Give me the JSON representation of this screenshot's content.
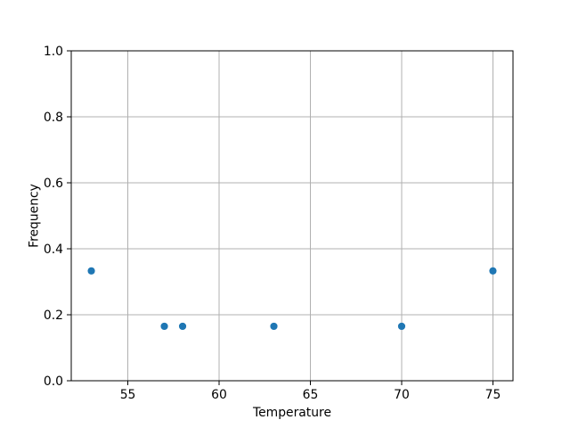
{
  "chart_data": {
    "type": "scatter",
    "title": "",
    "xlabel": "Temperature",
    "ylabel": "Frequency",
    "x": [
      53,
      57,
      58,
      63,
      70,
      75
    ],
    "y": [
      0.333,
      0.165,
      0.165,
      0.165,
      0.165,
      0.333
    ],
    "xlim": [
      51.9,
      76.1
    ],
    "ylim": [
      0.0,
      1.0
    ],
    "xticks": [
      55,
      60,
      65,
      70,
      75
    ],
    "xtick_labels": [
      "55",
      "60",
      "65",
      "70",
      "75"
    ],
    "yticks": [
      0.0,
      0.2,
      0.4,
      0.6,
      0.8,
      1.0
    ],
    "ytick_labels": [
      "0.0",
      "0.2",
      "0.4",
      "0.6",
      "0.8",
      "1.0"
    ],
    "grid": true,
    "legend": "none",
    "colors": {
      "marker": "#1f77b4",
      "grid": "#b0b0b0",
      "spine": "#000000",
      "text": "#000000",
      "background": "#ffffff"
    }
  }
}
